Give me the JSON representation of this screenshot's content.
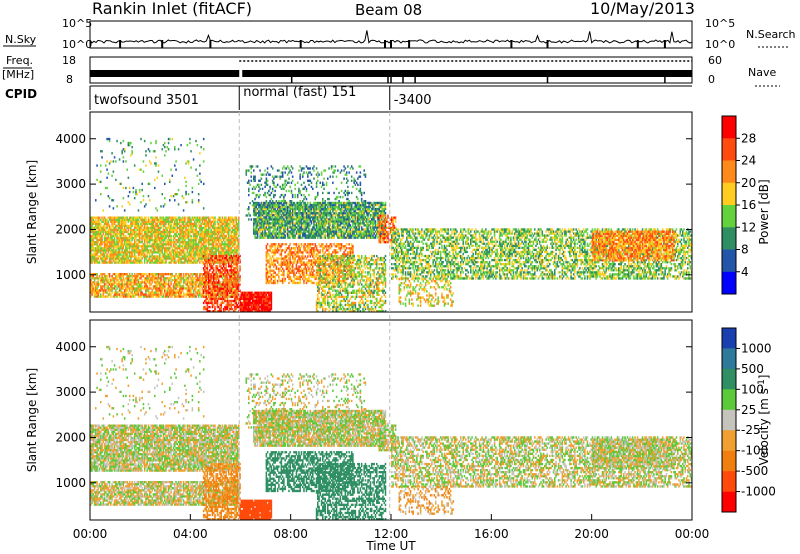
{
  "header": {
    "station": "Rankin Inlet (fitACF)",
    "beam": "Beam 08",
    "date": "10/May/2013"
  },
  "summary": {
    "nsky_label": "N.Sky",
    "nsearch_label": "N.Search",
    "nsky_ticks": [
      "10^5",
      "10^0"
    ],
    "nsearch_ticks": [
      "10^5",
      "10^0"
    ],
    "freq_label": "Freq.",
    "freq_unit": "[MHz]",
    "freq_ticks": [
      "18",
      "8"
    ],
    "nave_label": "Nave",
    "nave_ticks": [
      "60",
      "0"
    ],
    "cpid_label": "CPID"
  },
  "chart_data": [
    {
      "type": "heatmap",
      "name": "power-panel",
      "ylabel": "Slant Range [km]",
      "yticks": [
        1000,
        2000,
        3000,
        4000
      ],
      "ylim": [
        180,
        4590
      ],
      "xlim": [
        0,
        24
      ],
      "colorbar": {
        "label": "Power [dB]",
        "ticks": [
          28,
          24,
          20,
          16,
          12,
          8,
          4
        ],
        "colors": [
          "#ff0000",
          "#ff4a10",
          "#ff8a1c",
          "#ffcc1f",
          "#64d23c",
          "#2f8f63",
          "#2256a8",
          "#0000ff"
        ]
      }
    },
    {
      "type": "heatmap",
      "name": "velocity-panel",
      "ylabel": "Slant Range [km]",
      "xlabel": "Time UT",
      "yticks": [
        1000,
        2000,
        3000,
        4000
      ],
      "ylim": [
        180,
        4590
      ],
      "xlim": [
        0,
        24
      ],
      "xticks": [
        "00:00",
        "04:00",
        "08:00",
        "12:00",
        "16:00",
        "20:00",
        "00:00"
      ],
      "colorbar": {
        "label": "Velocity [m s^-1]",
        "ticks": [
          1000,
          500,
          100,
          25,
          -25,
          -100,
          -500,
          -1000
        ],
        "colors": [
          "#1a3fb0",
          "#2f7a9a",
          "#2f8f63",
          "#5cc93a",
          "#c4c4bc",
          "#f0a030",
          "#f07f10",
          "#ff4a0a",
          "#ff0000"
        ]
      }
    }
  ],
  "cpid_segments": [
    {
      "label": "twofsound 3501",
      "start": 0.0,
      "end": 5.95
    },
    {
      "label": "normal (fast) 151",
      "start": 5.95,
      "end": 11.95
    },
    {
      "label": "-3400",
      "start": 11.95,
      "end": 24.0
    }
  ]
}
